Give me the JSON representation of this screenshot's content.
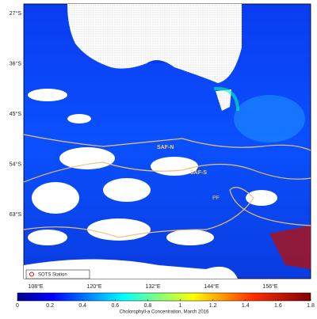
{
  "map": {
    "lat_labels": [
      "27°S",
      "36°S",
      "45°S",
      "54°S",
      "63°S"
    ],
    "lon_labels": [
      "108°E",
      "120°E",
      "132°E",
      "144°E",
      "156°E"
    ],
    "fronts": [
      "SAF-N",
      "SAF-S",
      "PF"
    ],
    "legend": "SOTS Station",
    "colorbar": {
      "label": "Cholorophyll-a Concentration, March 2016",
      "range": [
        0,
        1.8
      ],
      "ticks": [
        0,
        0.2,
        0.4,
        0.6,
        0.8,
        1,
        1.2,
        1.4,
        1.6,
        1.8
      ]
    }
  }
}
